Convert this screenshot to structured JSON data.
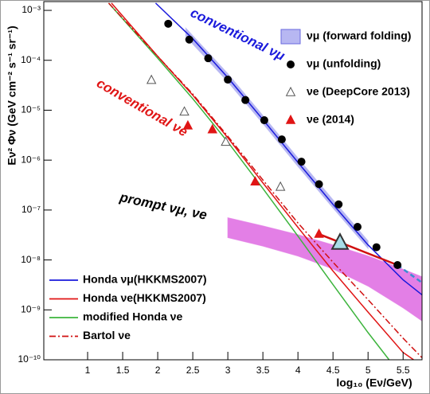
{
  "chart_data": {
    "type": "scatter",
    "y_label": "Eν² Φν (GeV cm⁻² s⁻¹ sr⁻¹)",
    "x_label": "log₁₀ (Eν/GeV)",
    "xlim": [
      0.375,
      5.77
    ],
    "ylim": [
      1e-10,
      0.0015
    ],
    "log_y": true,
    "xticks": [
      1,
      1.5,
      2,
      2.5,
      3,
      3.5,
      4,
      4.5,
      5,
      5.5
    ],
    "yticks": [
      {
        "value": 1e-10,
        "label": "10⁻¹⁰"
      },
      {
        "value": 1e-09,
        "label": "10⁻⁹"
      },
      {
        "value": 1e-08,
        "label": "10⁻⁸"
      },
      {
        "value": 1e-07,
        "label": "10⁻⁷"
      },
      {
        "value": 1e-06,
        "label": "10⁻⁶"
      },
      {
        "value": 1e-05,
        "label": "10⁻⁵"
      },
      {
        "value": 0.0001,
        "label": "10⁻⁴"
      },
      {
        "value": 0.001,
        "label": "10⁻³"
      }
    ],
    "annotations": [
      {
        "text": "conventional νμ",
        "color": "#1a1adc"
      },
      {
        "text": "conventional νe",
        "color": "#e01515"
      },
      {
        "text": "prompt νμ, νe",
        "color": "#000000"
      }
    ],
    "series": [
      {
        "type": "band",
        "color": "#e37fe6",
        "x": [
          3.0,
          3.5,
          4.0,
          4.5,
          5.0,
          5.5,
          5.77
        ],
        "upper": [
          7e-08,
          4.8e-08,
          3.2e-08,
          2e-08,
          1.2e-08,
          6.5e-09,
          4.6e-09
        ],
        "lower": [
          2.8e-08,
          1.9e-08,
          1.2e-08,
          6.6e-09,
          3e-09,
          1.1e-09,
          6e-10
        ]
      },
      {
        "type": "band",
        "name": "νμ (forward folding)",
        "legend": "upper right",
        "color": "#b7b7f2",
        "x": [
          2.4,
          3.0,
          3.5,
          4.0,
          4.5,
          5.0
        ],
        "upper": [
          0.00044,
          5.4e-05,
          7.8e-06,
          1.1e-06,
          1.6e-07,
          2.4e-08
        ],
        "lower": [
          0.0003,
          3.7e-05,
          5.4e-06,
          7.5e-07,
          1.1e-07,
          1.7e-08
        ]
      },
      {
        "type": "line",
        "name": "Honda νμ(HKKMS2007)",
        "legend": "lower left",
        "color": "#1a1adc",
        "x": [
          1.97,
          2.5,
          3.0,
          3.5,
          4.0,
          4.5,
          5.0,
          5.5,
          5.77
        ],
        "values": [
          0.0014,
          0.00027,
          4.5e-05,
          6.5e-06,
          9e-07,
          1.3e-07,
          2e-08,
          4e-09,
          2e-09
        ]
      },
      {
        "type": "line",
        "name": "Honda νe(HKKMS2007)",
        "legend": "lower left",
        "color": "#e01515",
        "x": [
          1.34,
          2.0,
          2.5,
          3.0,
          3.5,
          4.0,
          4.5,
          5.0,
          5.5,
          5.65
        ],
        "values": [
          0.0014,
          0.00012,
          2e-05,
          2.8e-06,
          3.5e-07,
          4.5e-08,
          6e-09,
          9e-10,
          1.4e-10,
          1e-10
        ]
      },
      {
        "type": "line",
        "name": "modified Honda νe",
        "legend": "lower left",
        "color": "#3cb43c",
        "x": [
          1.3,
          2.0,
          2.5,
          3.0,
          3.5,
          4.0,
          4.5,
          5.0,
          5.3
        ],
        "values": [
          0.0014,
          0.00011,
          1.7e-05,
          2.3e-06,
          2.7e-07,
          3e-08,
          3.2e-09,
          3.5e-10,
          1e-10
        ]
      },
      {
        "type": "line",
        "name": "Bartol νe",
        "legend": "lower left",
        "color": "#d01010",
        "dash": "dashdot",
        "x": [
          1.3,
          2.0,
          2.5,
          3.0,
          3.5,
          4.0,
          4.5,
          5.0,
          5.5,
          5.77
        ],
        "values": [
          0.0014,
          0.00012,
          2.1e-05,
          3e-06,
          4e-07,
          5.5e-08,
          9e-09,
          1.6e-09,
          2.7e-10,
          1.1e-10
        ]
      },
      {
        "type": "line",
        "color": "#d01010",
        "width": 2.5,
        "x": [
          4.3,
          5.42
        ],
        "values": [
          3.3e-08,
          7.9e-09
        ]
      },
      {
        "type": "line",
        "color": "#3a8fd0",
        "width": 2.5,
        "dash": "dashed",
        "x": [
          5.42,
          5.77
        ],
        "values": [
          7.9e-09,
          3.5e-09
        ]
      },
      {
        "type": "points",
        "name": "νμ (unfolding)",
        "legend": "upper right",
        "marker": "circle",
        "color": "#000000",
        "x": [
          2.15,
          2.45,
          2.72,
          3.0,
          3.25,
          3.52,
          3.77,
          4.05,
          4.3,
          4.58,
          4.85,
          5.12,
          5.42
        ],
        "values": [
          0.00054,
          0.00026,
          0.00011,
          4.1e-05,
          1.6e-05,
          6.3e-06,
          2.6e-06,
          9.3e-07,
          3.3e-07,
          1.3e-07,
          4.6e-08,
          1.8e-08,
          7.9e-09
        ]
      },
      {
        "type": "points",
        "name": "νe (DeepCore 2013)",
        "legend": "upper right",
        "marker": "triangle-open",
        "color": "#555555",
        "x": [
          1.91,
          2.38,
          2.97,
          3.75
        ],
        "values": [
          4e-05,
          9.3e-06,
          2.3e-06,
          2.9e-07
        ]
      },
      {
        "type": "points",
        "name": "νe (2014)",
        "legend": "upper right",
        "marker": "triangle",
        "color": "#e01515",
        "x": [
          2.43,
          2.78,
          3.39,
          4.3
        ],
        "values": [
          4.9e-06,
          4.1e-06,
          3.7e-07,
          3.3e-08
        ]
      },
      {
        "type": "points",
        "marker": "triangle-big",
        "color": "#a8dde8",
        "x": [
          4.6
        ],
        "values": [
          2.2e-08
        ]
      }
    ]
  }
}
